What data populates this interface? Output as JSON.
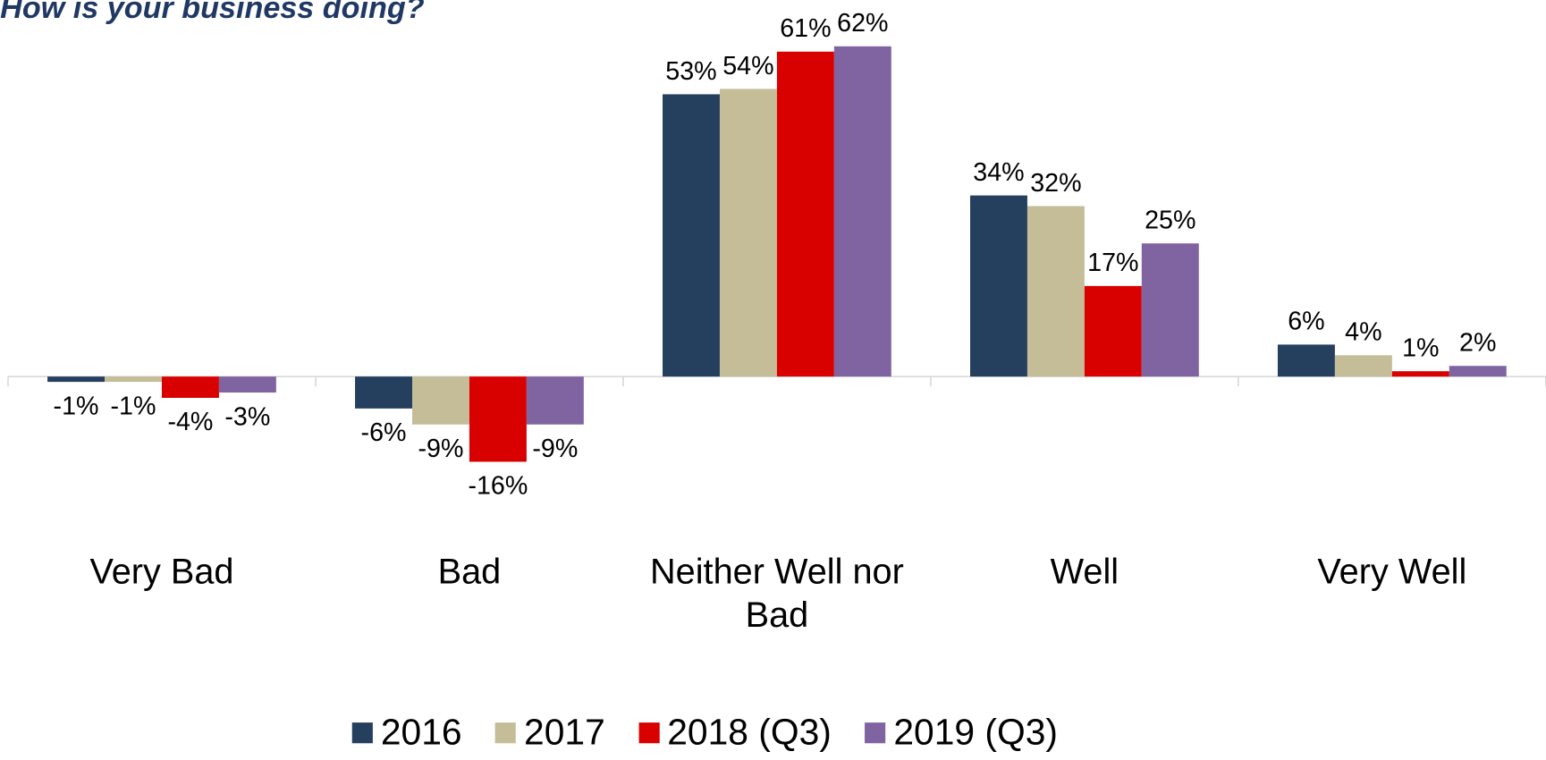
{
  "chart_data": {
    "type": "bar",
    "title": "How is your business doing?",
    "categories": [
      "Very Bad",
      "Bad",
      "Neither Well nor Bad",
      "Well",
      "Very Well"
    ],
    "series": [
      {
        "name": "2016",
        "color": "#253f5f",
        "values": [
          -1,
          -6,
          53,
          34,
          6
        ],
        "value_labels": [
          "-1%",
          "-6%",
          "53%",
          "34%",
          "6%"
        ]
      },
      {
        "name": "2017",
        "color": "#c4bd97",
        "values": [
          -1,
          -9,
          54,
          32,
          4
        ],
        "value_labels": [
          "-1%",
          "-9%",
          "54%",
          "32%",
          "4%"
        ]
      },
      {
        "name": "2018 (Q3)",
        "color": "#d90000",
        "values": [
          -4,
          -16,
          61,
          17,
          1
        ],
        "value_labels": [
          "-4%",
          "-16%",
          "61%",
          "17%",
          "1%"
        ]
      },
      {
        "name": "2019 (Q3)",
        "color": "#8064a2",
        "values": [
          -3,
          -9,
          62,
          25,
          2
        ],
        "value_labels": [
          "-3%",
          "-9%",
          "62%",
          "25%",
          "2%"
        ]
      }
    ],
    "legend": "bottom"
  }
}
